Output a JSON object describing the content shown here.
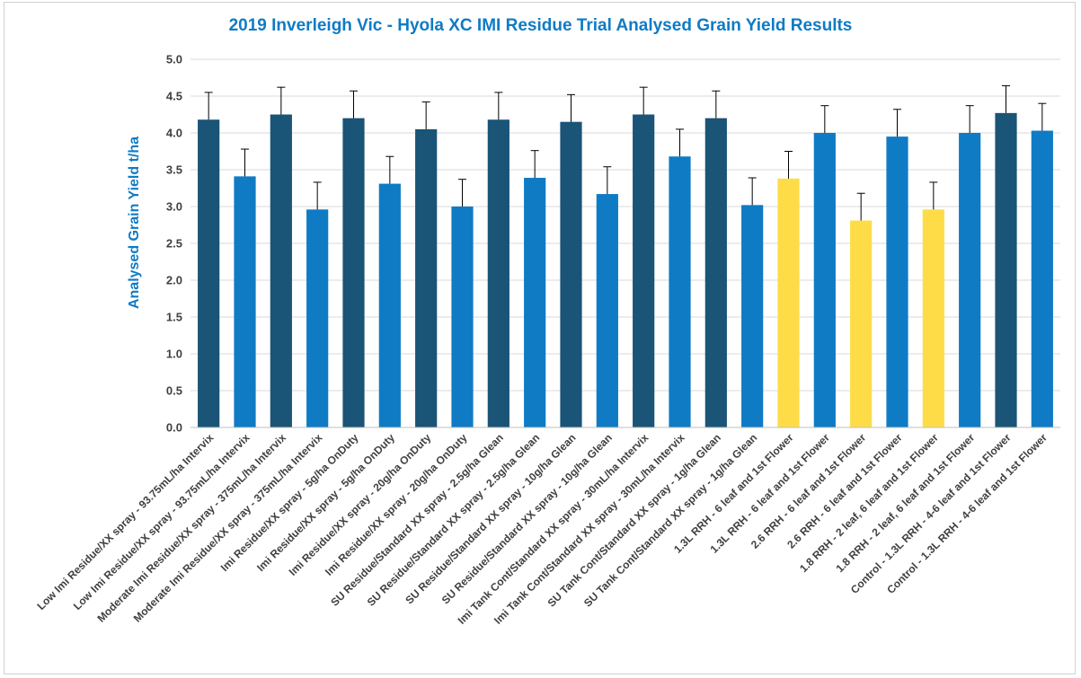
{
  "chart_data": {
    "type": "bar",
    "title": "2019 Inverleigh Vic - Hyola XC IMI Residue Trial Analysed Grain Yield Results",
    "xlabel": "",
    "ylabel": "Analysed Grain Yield t/ha",
    "ylim": [
      0,
      5
    ],
    "yticks": [
      "0.0",
      "0.5",
      "1.0",
      "1.5",
      "2.0",
      "2.5",
      "3.0",
      "3.5",
      "4.0",
      "4.5",
      "5.0"
    ],
    "grid": true,
    "legend": "none",
    "colors": {
      "dark": "#1a5477",
      "blue": "#0f7bc5",
      "yellow": "#fddc47"
    },
    "categories": [
      "Low Imi Residue/XX spray - 93.75mL/ha Intervix",
      "Low Imi Residue/XX spray - 93.75mL/ha Intervix",
      "Moderate Imi Residue/XX spray - 375mL/ha Intervix",
      "Moderate Imi Residue/XX spray - 375mL/ha Intervix",
      "Imi Residue/XX spray - 5g/ha OnDuty",
      "Imi Residue/XX spray - 5g/ha OnDuty",
      "Imi Residue/XX spray - 20g/ha OnDuty",
      "Imi Residue/XX spray - 20g/ha OnDuty",
      "SU Residue/Standard XX spray - 2.5g/ha Glean",
      "SU Residue/Standard XX spray - 2.5g/ha Glean",
      "SU Residue/Standard XX spray - 10g/ha Glean",
      "SU Residue/Standard XX spray - 10g/ha Glean",
      "Imi Tank Cont/Standard XX spray - 30mL/ha Intervix",
      "Imi Tank Cont/Standard XX spray - 30mL/ha Intervix",
      "SU Tank Cont/Standard XX spray - 1g/ha Glean",
      "SU Tank Cont/Standard XX spray - 1g/ha Glean",
      "1.3L RRH - 6 leaf and 1st Flower",
      "1.3L RRH - 6 leaf and 1st Flower",
      "2.6 RRH - 6 leaf and 1st Flower",
      "2.6 RRH - 6 leaf and 1st Flower",
      "1.8 RRH - 2 leaf, 6 leaf and 1st Flower",
      "1.8 RRH - 2 leaf, 6 leaf and 1st Flower",
      "Control - 1.3L RRH - 4-6 leaf and 1st Flower",
      "Control - 1.3L RRH - 4-6 leaf and 1st Flower"
    ],
    "values": [
      4.18,
      3.41,
      4.25,
      2.96,
      4.2,
      3.31,
      4.05,
      3.0,
      4.18,
      3.39,
      4.15,
      3.17,
      4.25,
      3.68,
      4.2,
      3.02,
      3.38,
      4.0,
      2.81,
      3.95,
      2.96,
      4.0,
      4.27,
      4.03
    ],
    "error_plus": [
      0.37,
      0.37,
      0.37,
      0.37,
      0.37,
      0.37,
      0.37,
      0.37,
      0.37,
      0.37,
      0.37,
      0.37,
      0.37,
      0.37,
      0.37,
      0.37,
      0.37,
      0.37,
      0.37,
      0.37,
      0.37,
      0.37,
      0.37,
      0.37
    ],
    "bar_colors": [
      "dark",
      "blue",
      "dark",
      "blue",
      "dark",
      "blue",
      "dark",
      "blue",
      "dark",
      "blue",
      "dark",
      "blue",
      "dark",
      "blue",
      "dark",
      "blue",
      "yellow",
      "blue",
      "yellow",
      "blue",
      "yellow",
      "blue",
      "dark",
      "blue"
    ]
  }
}
